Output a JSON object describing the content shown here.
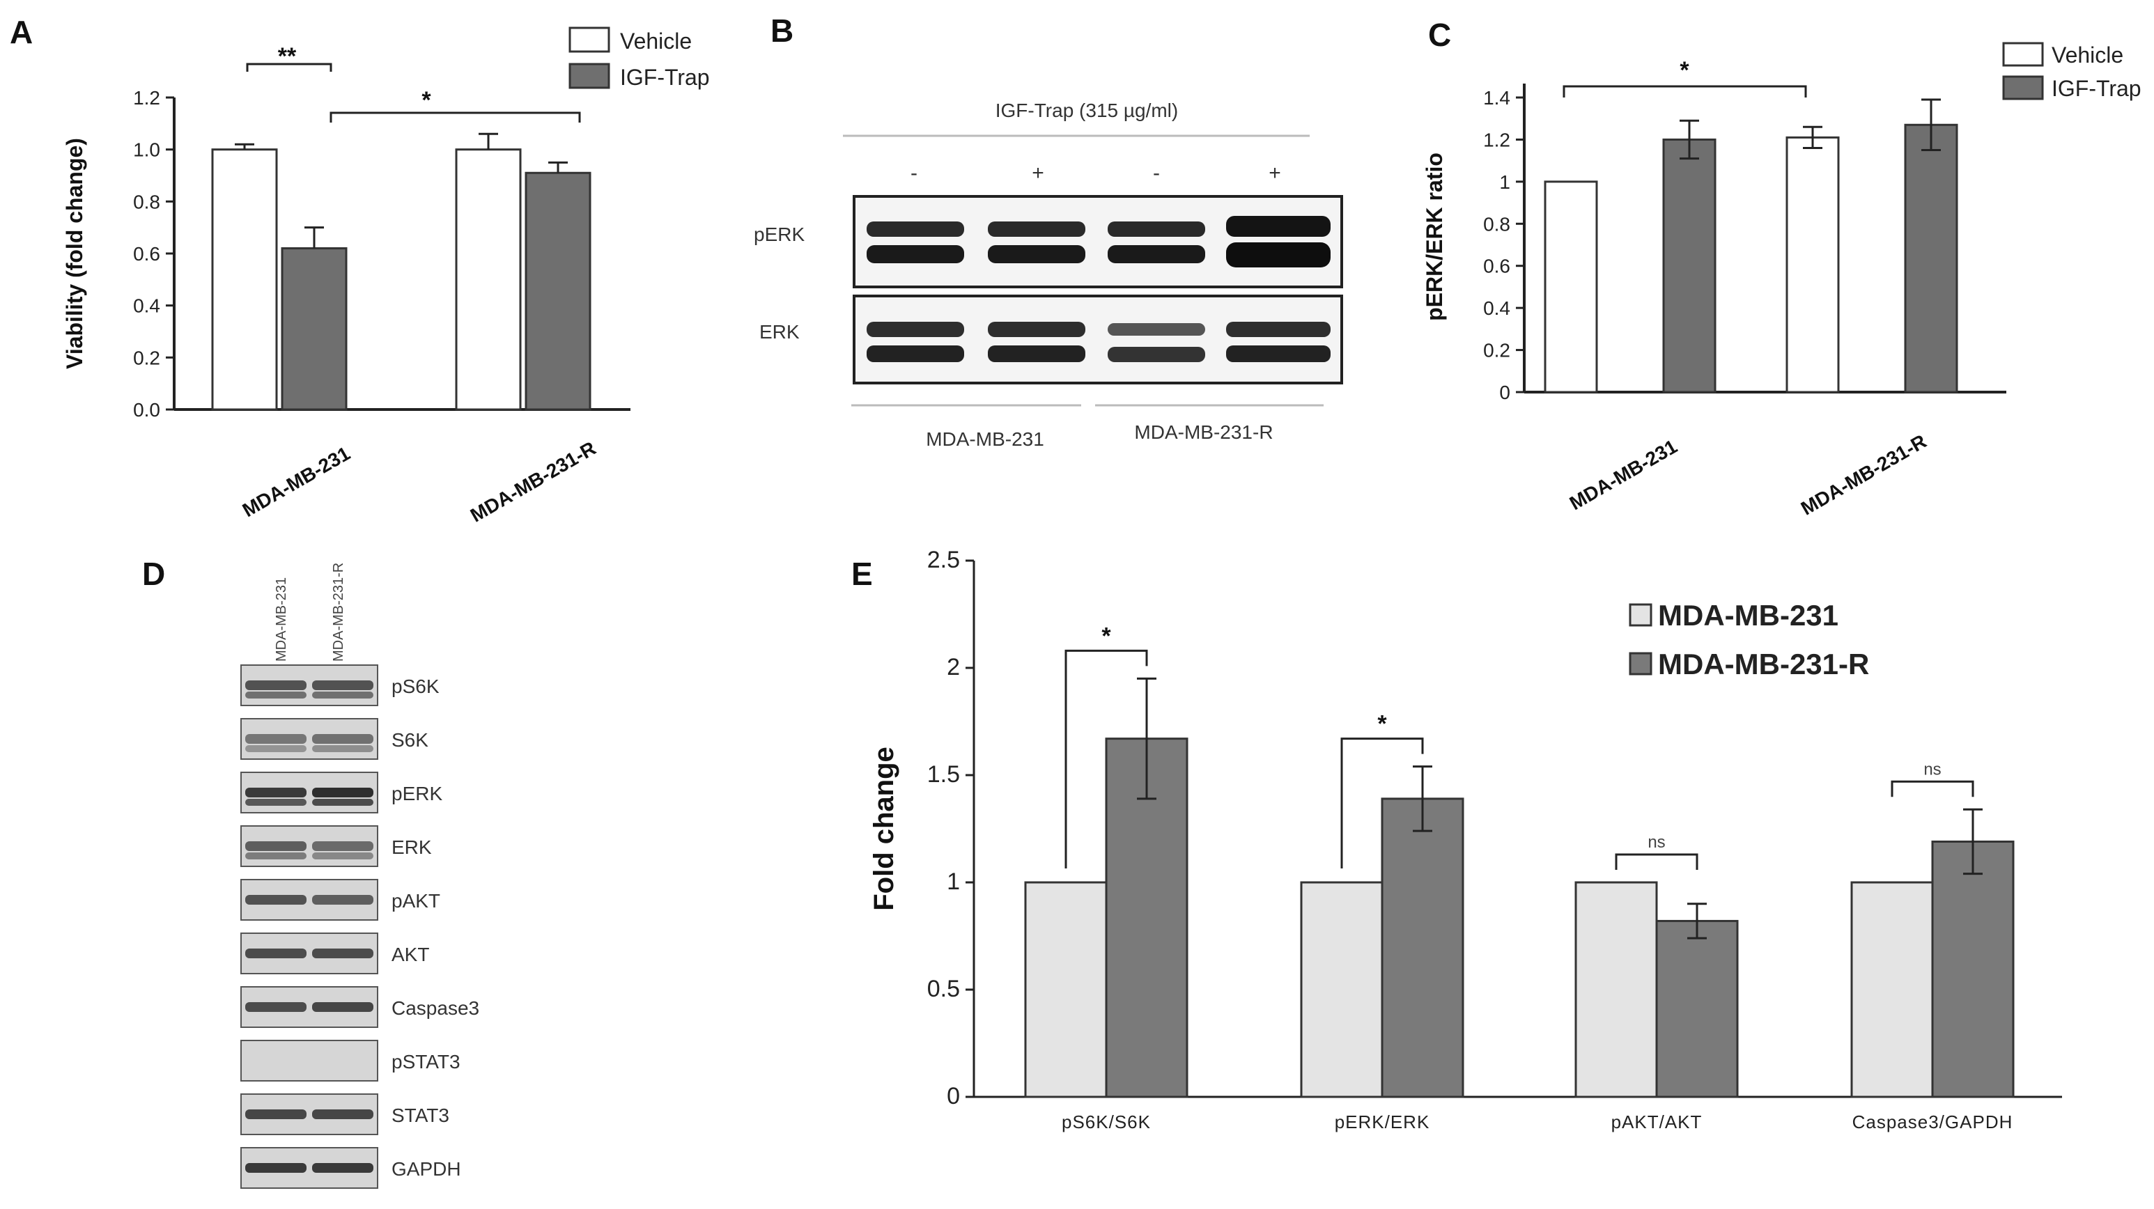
{
  "panels": {
    "A": "A",
    "B": "B",
    "C": "C",
    "D": "D",
    "E": "E"
  },
  "colors": {
    "vehicle": "#ffffff",
    "igf_trap": "#6f6f6f",
    "bar_stroke": "#333333",
    "E_light": "#e4e4e4",
    "E_dark": "#7a7a7a"
  },
  "chart_data": [
    {
      "panel": "A",
      "type": "bar",
      "ylabel": "Viability  (fold change)",
      "ylim": [
        0,
        1.2
      ],
      "yticks": [
        "0.0",
        "0.2",
        "0.4",
        "0.6",
        "0.8",
        "1.0",
        "1.2"
      ],
      "categories": [
        "MDA-MB-231",
        "MDA-MB-231-R"
      ],
      "series": [
        {
          "name": "Vehicle",
          "values": [
            1.0,
            1.0
          ],
          "errors": [
            0.02,
            0.06
          ]
        },
        {
          "name": "IGF-Trap",
          "values": [
            0.62,
            0.91
          ],
          "errors": [
            0.08,
            0.04
          ]
        }
      ],
      "annotations": [
        {
          "label": "**",
          "between": "MDA-MB-231 Vehicle vs IGF-Trap"
        },
        {
          "label": "*",
          "between": "MDA-MB-231 IGF-Trap vs MDA-MB-231-R IGF-Trap"
        }
      ],
      "legend": [
        "Vehicle",
        "IGF-Trap"
      ]
    },
    {
      "panel": "C",
      "type": "bar",
      "ylabel": "pERK/ERK ratio",
      "ylim": [
        0,
        1.4
      ],
      "yticks": [
        "0",
        "0.2",
        "0.4",
        "0.6",
        "0.8",
        "1",
        "1.2",
        "1.4"
      ],
      "categories": [
        "MDA-MB-231",
        "MDA-MB-231-R"
      ],
      "series": [
        {
          "name": "Vehicle",
          "values": [
            1.0,
            1.21
          ],
          "errors": [
            0.0,
            0.05
          ]
        },
        {
          "name": "IGF-Trap",
          "values": [
            1.2,
            1.27
          ],
          "errors": [
            0.09,
            0.12
          ]
        }
      ],
      "annotations": [
        {
          "label": "*",
          "between": "MDA-MB-231 Vehicle vs MDA-MB-231-R Vehicle"
        }
      ],
      "legend": [
        "Vehicle",
        "IGF-Trap"
      ]
    },
    {
      "panel": "E",
      "type": "bar",
      "ylabel": "Fold change",
      "ylim": [
        0,
        2.5
      ],
      "yticks": [
        "0",
        "0.5",
        "1",
        "1.5",
        "2",
        "2.5"
      ],
      "categories": [
        "pS6K/S6K",
        "pERK/ERK",
        "pAKT/AKT",
        "Caspase3/GAPDH"
      ],
      "series": [
        {
          "name": "MDA-MB-231",
          "values": [
            1.0,
            1.0,
            1.0,
            1.0
          ],
          "errors": [
            0,
            0,
            0,
            0
          ]
        },
        {
          "name": "MDA-MB-231-R",
          "values": [
            1.67,
            1.39,
            0.82,
            1.19
          ],
          "errors": [
            0.28,
            0.15,
            0.08,
            0.15
          ]
        }
      ],
      "annotations": [
        "*",
        "*",
        "ns",
        "ns"
      ],
      "legend": [
        "MDA-MB-231",
        "MDA-MB-231-R"
      ]
    }
  ],
  "blot_B": {
    "treatment": "IGF-Trap (315 µg/ml)",
    "signs": [
      "-",
      "+",
      "-",
      "+"
    ],
    "rows": [
      "pERK",
      "ERK"
    ],
    "groups": [
      "MDA-MB-231",
      "MDA-MB-231-R"
    ]
  },
  "blot_D": {
    "lanes": [
      "MDA-MB-231",
      "MDA-MB-231-R"
    ],
    "rows": [
      "pS6K",
      "S6K",
      "pERK",
      "ERK",
      "pAKT",
      "AKT",
      "Caspase3",
      "pSTAT3",
      "STAT3",
      "GAPDH"
    ]
  }
}
